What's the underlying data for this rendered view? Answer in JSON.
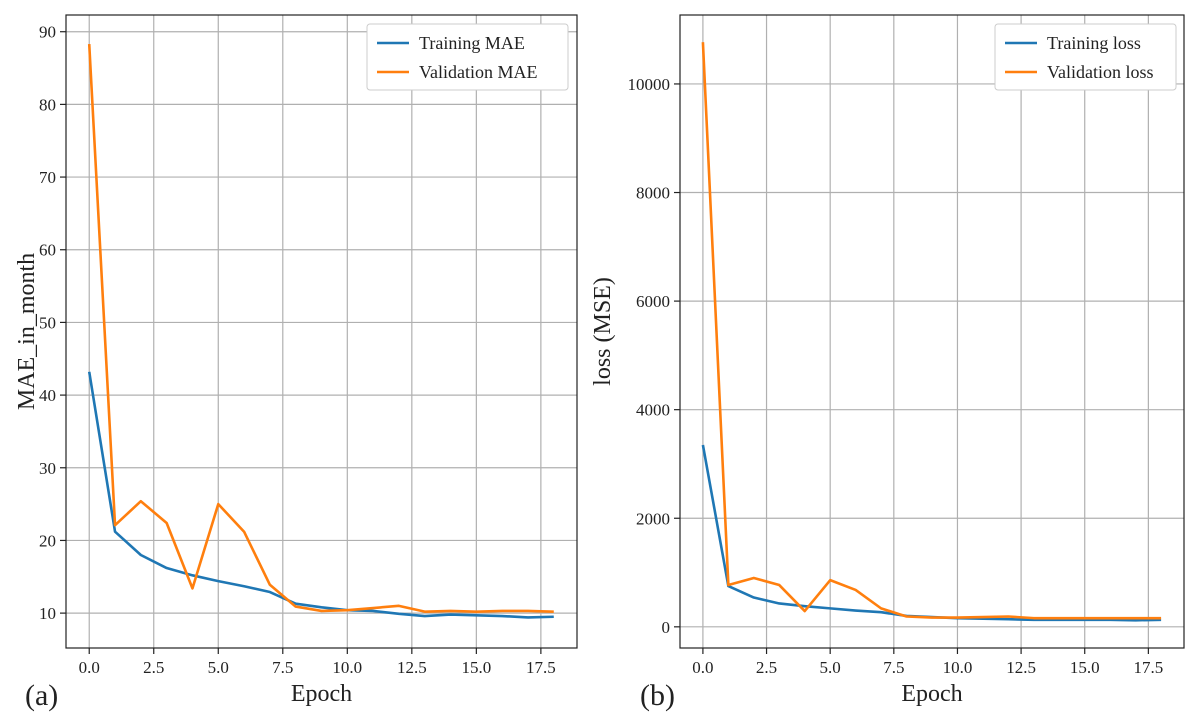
{
  "colors": {
    "training": "#1f77b4",
    "validation": "#ff7f0e",
    "grid": "#b0b0b0",
    "frame": "#222222",
    "background": "#ffffff"
  },
  "chart_data": [
    {
      "type": "line",
      "panel_label": "(a)",
      "xlabel": "Epoch",
      "ylabel": "MAE_in_month",
      "xlim": [
        -0.9,
        18.9
      ],
      "ylim": [
        5.2,
        92.3
      ],
      "xticks": [
        0,
        2.5,
        5,
        7.5,
        10,
        12.5,
        15,
        17.5
      ],
      "xtick_labels": [
        "0.0",
        "2.5",
        "5.0",
        "7.5",
        "10.0",
        "12.5",
        "15.0",
        "17.5"
      ],
      "yticks": [
        10,
        20,
        30,
        40,
        50,
        60,
        70,
        80,
        90
      ],
      "ytick_labels": [
        "10",
        "20",
        "30",
        "40",
        "50",
        "60",
        "70",
        "80",
        "90"
      ],
      "grid": true,
      "legend_position": "upper right",
      "x": [
        0,
        1,
        2,
        3,
        4,
        5,
        6,
        7,
        8,
        9,
        10,
        11,
        12,
        13,
        14,
        15,
        16,
        17,
        18
      ],
      "series": [
        {
          "name": "Training MAE",
          "color": "#1f77b4",
          "values": [
            43.2,
            21.2,
            18.0,
            16.2,
            15.2,
            14.4,
            13.7,
            12.9,
            11.3,
            10.8,
            10.4,
            10.3,
            9.9,
            9.6,
            9.8,
            9.7,
            9.6,
            9.4,
            9.5
          ]
        },
        {
          "name": "Validation MAE",
          "color": "#ff7f0e",
          "values": [
            88.3,
            22.1,
            25.4,
            22.4,
            13.4,
            25.0,
            21.2,
            13.9,
            10.9,
            10.3,
            10.4,
            10.7,
            11.0,
            10.2,
            10.3,
            10.2,
            10.3,
            10.3,
            10.2
          ]
        }
      ]
    },
    {
      "type": "line",
      "panel_label": "(b)",
      "xlabel": "Epoch",
      "ylabel": "loss (MSE)",
      "xlim": [
        -0.9,
        18.9
      ],
      "ylim": [
        -390,
        11270
      ],
      "xticks": [
        0,
        2.5,
        5,
        7.5,
        10,
        12.5,
        15,
        17.5
      ],
      "xtick_labels": [
        "0.0",
        "2.5",
        "5.0",
        "7.5",
        "10.0",
        "12.5",
        "15.0",
        "17.5"
      ],
      "yticks": [
        0,
        2000,
        4000,
        6000,
        8000,
        10000
      ],
      "ytick_labels": [
        "0",
        "2000",
        "4000",
        "6000",
        "8000",
        "10000"
      ],
      "grid": true,
      "legend_position": "upper right",
      "x": [
        0,
        1,
        2,
        3,
        4,
        5,
        6,
        7,
        8,
        9,
        10,
        11,
        12,
        13,
        14,
        15,
        16,
        17,
        18
      ],
      "series": [
        {
          "name": "Training loss",
          "color": "#1f77b4",
          "values": [
            3350,
            750,
            540,
            430,
            380,
            340,
            300,
            270,
            200,
            180,
            160,
            150,
            140,
            130,
            130,
            130,
            130,
            120,
            130
          ]
        },
        {
          "name": "Validation loss",
          "color": "#ff7f0e",
          "values": [
            10770,
            770,
            900,
            770,
            290,
            860,
            680,
            340,
            190,
            170,
            170,
            180,
            190,
            160,
            160,
            160,
            160,
            160,
            160
          ]
        }
      ]
    }
  ]
}
